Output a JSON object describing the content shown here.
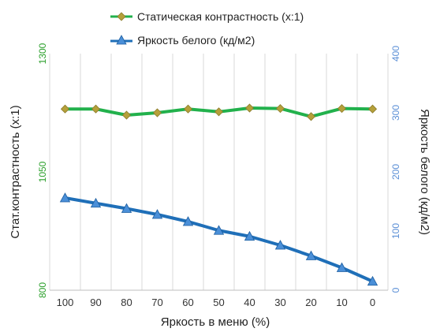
{
  "chart_data": {
    "type": "line",
    "categories": [
      "100",
      "90",
      "80",
      "70",
      "60",
      "50",
      "40",
      "30",
      "20",
      "10",
      "0"
    ],
    "xlabel": "Яркость в меню (%)",
    "y_left": {
      "label": "Стат.контрастность  (x:1)",
      "range": [
        800,
        1300
      ],
      "ticks": [
        "800",
        "1050",
        "1300"
      ],
      "color": "#2ca02c"
    },
    "y_right": {
      "label": "Яркость белого (кд/м2)",
      "range": [
        0,
        400
      ],
      "ticks": [
        "0",
        "100",
        "200",
        "300",
        "400"
      ],
      "color": "#5b8fd6"
    },
    "grid": "vertical",
    "legend_position": "top",
    "series": [
      {
        "name": "Статическая контрастность  (x:1)",
        "axis": "left",
        "marker": "diamond",
        "line_color": "#22b14c",
        "marker_color": "#b5a03a",
        "values": [
          1183,
          1183,
          1170,
          1175,
          1183,
          1177,
          1185,
          1184,
          1167,
          1184,
          1183
        ]
      },
      {
        "name": "Яркость белого (кд/м2)",
        "axis": "right",
        "marker": "triangle",
        "line_color": "#1f6fb8",
        "marker_color": "#4a8fd8",
        "values": [
          156,
          147,
          138,
          128,
          116,
          101,
          91,
          76,
          58,
          38,
          15
        ]
      }
    ]
  }
}
